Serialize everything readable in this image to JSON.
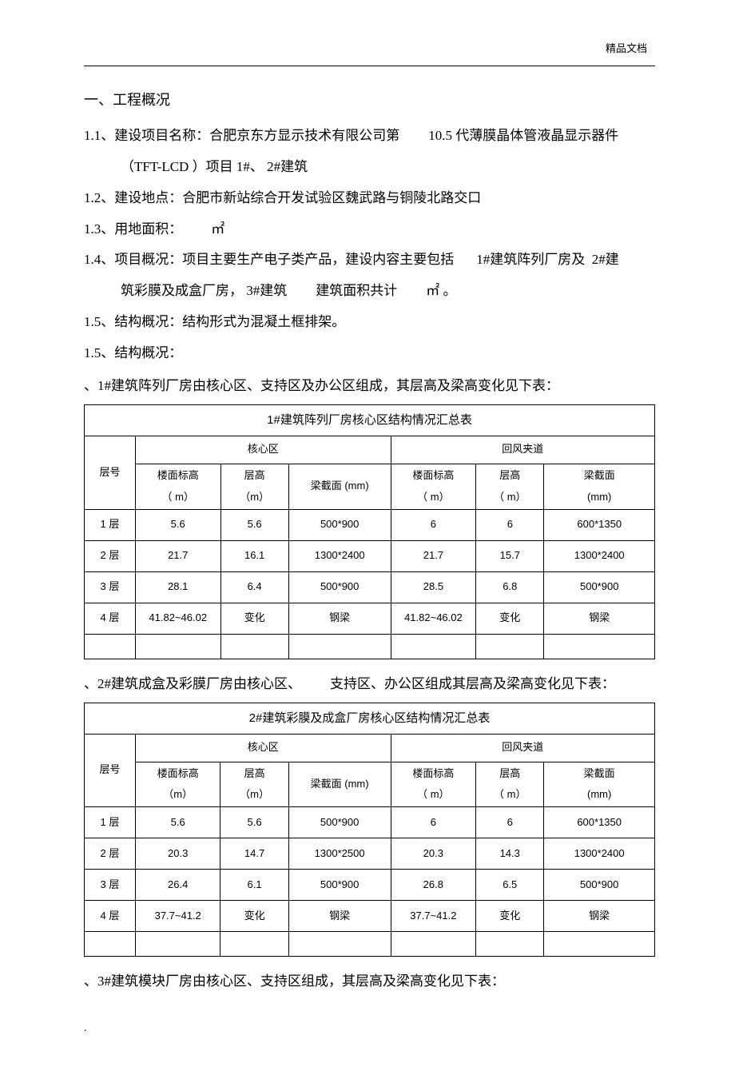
{
  "header_right": "精品文档",
  "section_title": "一、工程概况",
  "p1_a": "1.1、建设项目名称：合肥京东方显示技术有限公司第",
  "p1_b": "10.5 代薄膜晶体管液晶显示器件",
  "p1_c": "（TFT-LCD ）项目 1#、 2#建筑",
  "p2": "1.2、建设地点：合肥市新站综合开发试验区魏武路与铜陵北路交口",
  "p3_a": "1.3、用地面积：",
  "p3_b": "㎡",
  "p4_a": "1.4、项目概况：项目主要生产电子类产品，建设内容主要包括",
  "p4_b": "1#建筑阵列厂房及",
  "p4_c": "2#建",
  "p4_d": "筑彩膜及成盒厂房， 3#建筑",
  "p4_e": "建筑面积共计",
  "p4_f": "㎡ 。",
  "p5": "1.5、结构概况：结构形式为混凝土框排架。",
  "p6": "1.5、结构概况：",
  "intro1": "、1#建筑阵列厂房由核心区、支持区及办公区组成，其层高及梁高变化见下表：",
  "intro2_a": "、2#建筑成盒及彩膜厂房由核心区、",
  "intro2_b": "支持区、办公区组成其层高及梁高变化见下表：",
  "intro3": "、3#建筑模块厂房由核心区、支持区组成，其层高及梁高变化见下表：",
  "footer_dot": ".",
  "table1": {
    "title": "1#建筑阵列厂房核心区结构情况汇总表",
    "group_left": "核心区",
    "group_right": "回风夹道",
    "col_floor": "层号",
    "h_elev_1": "楼面标高",
    "h_elev_2": "（ m）",
    "h_height_1": "层高",
    "h_height_2": "（m）",
    "h_beam_mm": "梁截面 (mm)",
    "h_elev_r1": "楼面标高",
    "h_elev_r2": "（ m）",
    "h_height_r1": "层高",
    "h_height_r2": "（ m）",
    "h_beam_r1": "梁截面",
    "h_beam_r2": "(mm)",
    "rows": [
      [
        "1 层",
        "5.6",
        "5.6",
        "500*900",
        "6",
        "6",
        "600*1350"
      ],
      [
        "2 层",
        "21.7",
        "16.1",
        "1300*2400",
        "21.7",
        "15.7",
        "1300*2400"
      ],
      [
        "3 层",
        "28.1",
        "6.4",
        "500*900",
        "28.5",
        "6.8",
        "500*900"
      ],
      [
        "4 层",
        "41.82~46.02",
        "变化",
        "钢梁",
        "41.82~46.02",
        "变化",
        "钢梁"
      ]
    ]
  },
  "table2": {
    "title": "2#建筑彩膜及成盒厂房核心区结构情况汇总表",
    "group_left": "核心区",
    "group_right": "回风夹道",
    "col_floor": "层号",
    "h_elev_1": "楼面标高",
    "h_elev_2": "（m）",
    "h_height_1": "层高",
    "h_height_2": "（m）",
    "h_beam_mm": "梁截面 (mm)",
    "h_elev_r1": "楼面标高",
    "h_elev_r2": "（ m）",
    "h_height_r1": "层高",
    "h_height_r2": "（ m）",
    "h_beam_r1": "梁截面",
    "h_beam_r2": "(mm)",
    "rows": [
      [
        "1 层",
        "5.6",
        "5.6",
        "500*900",
        "6",
        "6",
        "600*1350"
      ],
      [
        "2 层",
        "20.3",
        "14.7",
        "1300*2500",
        "20.3",
        "14.3",
        "1300*2400"
      ],
      [
        "3 层",
        "26.4",
        "6.1",
        "500*900",
        "26.8",
        "6.5",
        "500*900"
      ],
      [
        "4 层",
        "37.7~41.2",
        "变化",
        "钢梁",
        "37.7~41.2",
        "变化",
        "钢梁"
      ]
    ]
  }
}
